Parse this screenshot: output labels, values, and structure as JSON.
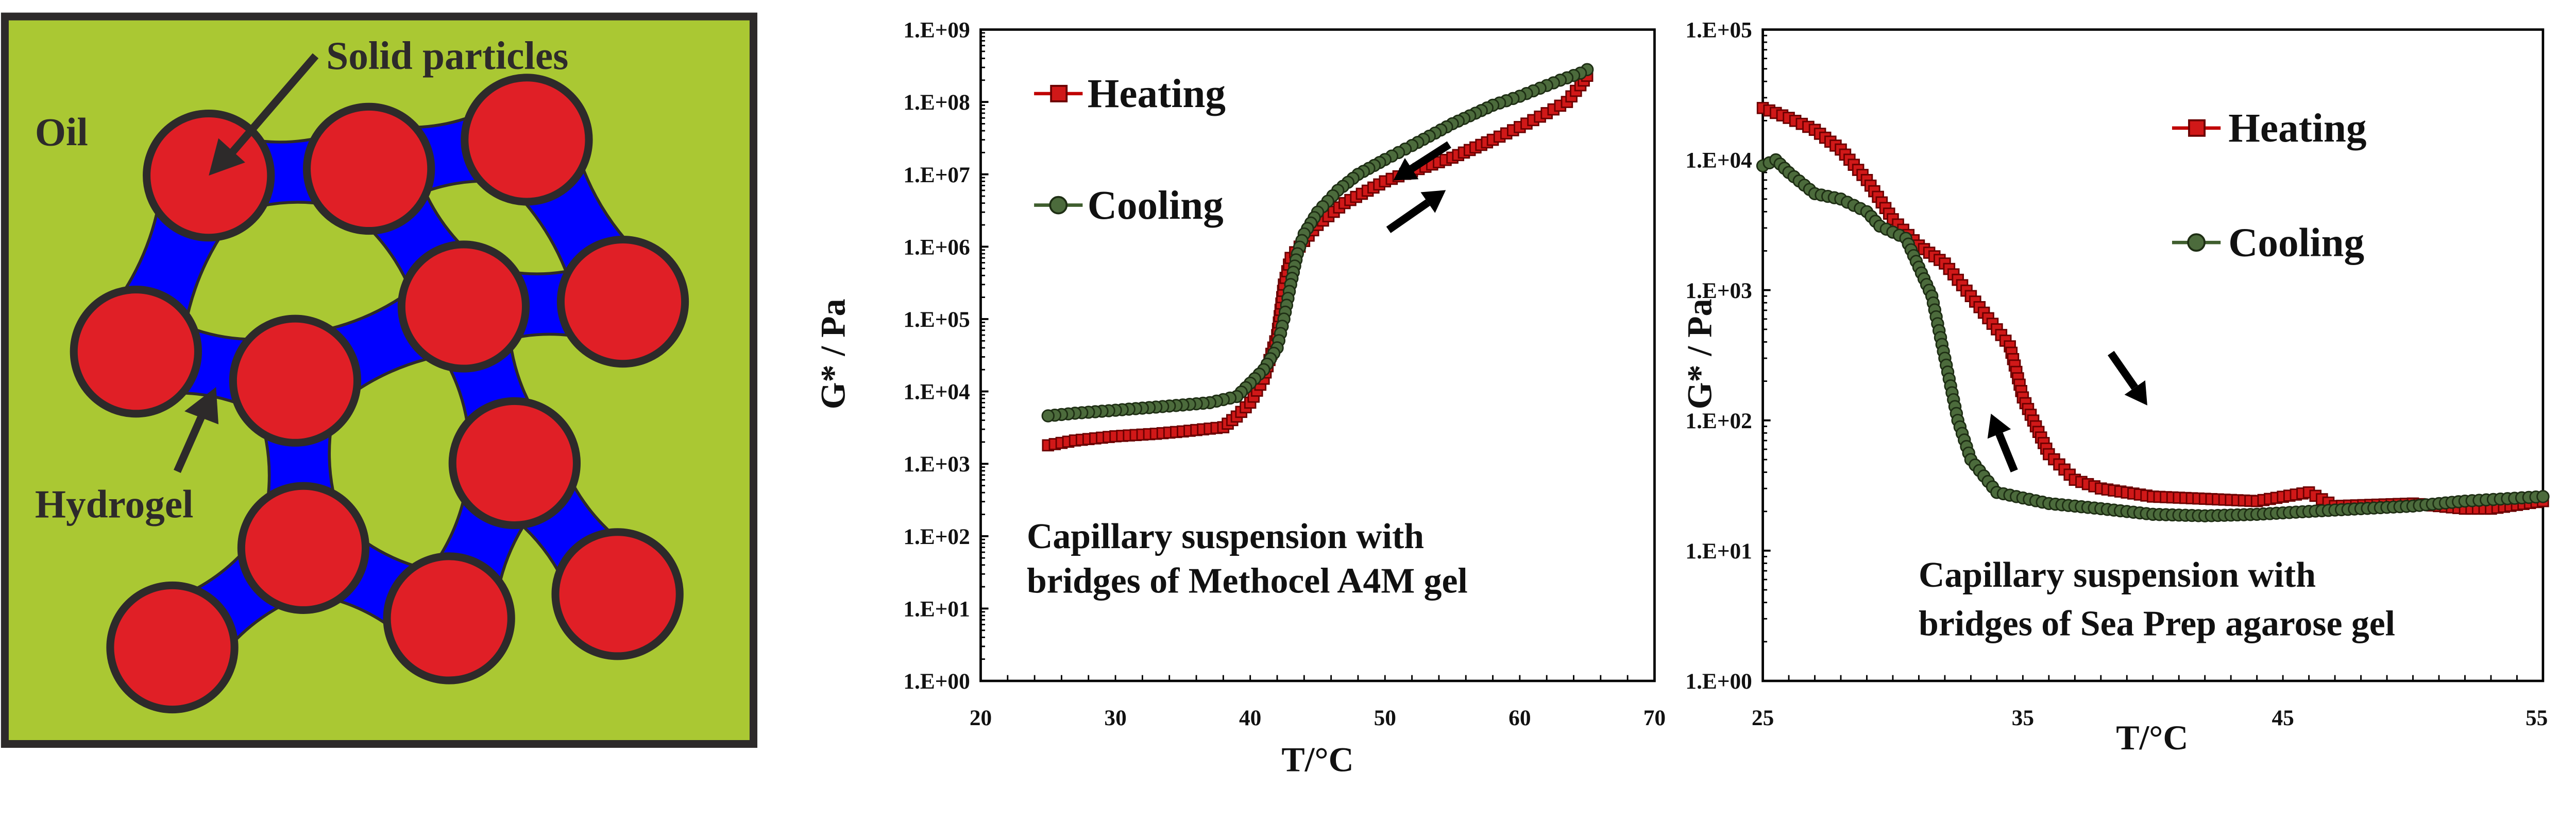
{
  "schematic": {
    "labels": {
      "solid_particles": "Solid particles",
      "oil": "Oil",
      "hydrogel": "Hydrogel"
    },
    "colors": {
      "oil": "#aac833",
      "particle": "#e01f26",
      "hydrogel": "#0000ff",
      "outline": "#2d2a2a"
    }
  },
  "chart_data": [
    {
      "type": "scatter",
      "ylabel": "G* / Pa",
      "xlabel": "T/°C",
      "xlim": [
        20,
        70
      ],
      "ylim": [
        1,
        1000000000
      ],
      "yscale": "log",
      "xticks": [
        "20",
        "30",
        "40",
        "50",
        "60",
        "70"
      ],
      "yticks": [
        "1.E+00",
        "1.E+01",
        "1.E+02",
        "1.E+03",
        "1.E+04",
        "1.E+05",
        "1.E+06",
        "1.E+07",
        "1.E+08",
        "1.E+09"
      ],
      "grid": false,
      "legend": "top-left",
      "annotation": [
        "Capillary suspension with",
        "bridges of Methocel A4M gel"
      ],
      "series": [
        {
          "name": "Heating",
          "marker": "square",
          "color": "#c00000",
          "x": [
            25,
            27,
            30,
            33,
            35,
            38,
            39,
            40,
            41,
            42,
            42.5,
            43,
            44,
            45,
            47,
            50,
            52,
            55,
            58,
            60,
            62,
            63.5,
            64.5,
            65
          ],
          "y": [
            1800,
            2100,
            2400,
            2600,
            2800,
            3200,
            4500,
            7000,
            15000,
            60000,
            300000,
            700000,
            1200000,
            2000000,
            4000000,
            8000000,
            11000000,
            17000000,
            30000000,
            45000000,
            70000000,
            100000000,
            170000000,
            230000000
          ]
        },
        {
          "name": "Cooling",
          "marker": "circle",
          "color": "#3f5e2e",
          "x": [
            65,
            64.5,
            63,
            60,
            58,
            55,
            52,
            50,
            48,
            46.5,
            45,
            44,
            43.5,
            43,
            42.5,
            42,
            41,
            40,
            39,
            37,
            35,
            30,
            27,
            25
          ],
          "y": [
            280000000,
            250000000,
            200000000,
            120000000,
            90000000,
            50000000,
            25000000,
            16000000,
            10000000,
            6000000,
            3000000,
            1500000,
            800000,
            300000,
            100000,
            40000,
            20000,
            13000,
            8500,
            7000,
            6500,
            5500,
            5000,
            4600
          ]
        }
      ]
    },
    {
      "type": "scatter",
      "ylabel": "G* / Pa",
      "xlabel": "T/°C",
      "xlim": [
        25,
        55
      ],
      "ylim": [
        1,
        100000
      ],
      "yscale": "log",
      "xticks": [
        "25",
        "35",
        "45",
        "55"
      ],
      "yticks": [
        "1.E+00",
        "1.E+01",
        "1.E+02",
        "1.E+03",
        "1.E+04",
        "1.E+05"
      ],
      "grid": false,
      "legend": "top-right",
      "annotation": [
        "Capillary suspension with",
        "bridges of Sea Prep agarose gel"
      ],
      "series": [
        {
          "name": "Heating",
          "marker": "square",
          "color": "#c00000",
          "x": [
            25,
            26,
            27,
            28,
            29,
            30,
            31,
            32,
            33,
            34,
            34.5,
            35,
            35.5,
            36,
            37,
            38,
            40,
            42,
            44,
            46,
            47,
            50,
            52,
            53,
            55
          ],
          "y": [
            25000,
            21000,
            17000,
            12000,
            7000,
            3500,
            2200,
            1600,
            900,
            500,
            370,
            150,
            90,
            55,
            35,
            30,
            26,
            25,
            24,
            28,
            22,
            23,
            21,
            21,
            24
          ]
        },
        {
          "name": "Cooling",
          "marker": "circle",
          "color": "#3f5e2e",
          "x": [
            25,
            25.5,
            26,
            27,
            28,
            29,
            29.5,
            30.5,
            31,
            31.5,
            32,
            32.5,
            33,
            34,
            36,
            38,
            40,
            42,
            44,
            46,
            48,
            50,
            52,
            55
          ],
          "y": [
            9000,
            10000,
            8000,
            5500,
            5000,
            4000,
            3100,
            2500,
            1500,
            900,
            300,
            100,
            50,
            28,
            23,
            21,
            19,
            18.5,
            19,
            20,
            21,
            22,
            24,
            26
          ]
        }
      ]
    }
  ]
}
